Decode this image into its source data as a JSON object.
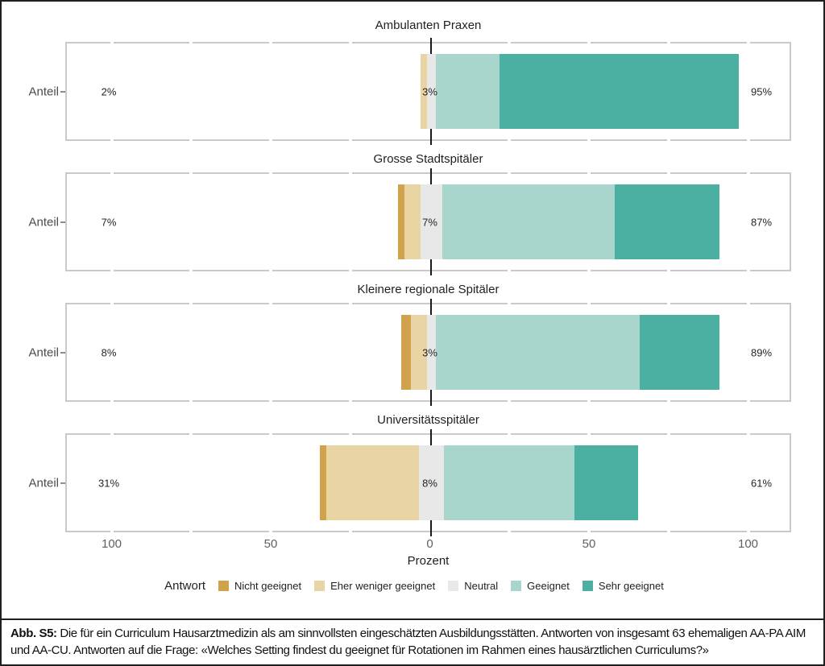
{
  "chart_data": {
    "type": "bar",
    "variant": "diverging_stacked_likert_horizontal",
    "title": "",
    "xlabel": "Prozent",
    "ylabel": "Anteil",
    "xlim": [
      -114,
      114
    ],
    "x_ticks": [
      -100,
      -50,
      0,
      50,
      100
    ],
    "x_tick_labels": [
      "100",
      "50",
      "0",
      "50",
      "100"
    ],
    "minor_break_step": 25,
    "grid": "minor white breaks on panel border, black zero line",
    "legend_position": "bottom",
    "legend_title": "Antwort",
    "categories": [
      "Nicht geeignet",
      "Eher weniger geeignet",
      "Neutral",
      "Geeignet",
      "Sehr geeignet"
    ],
    "colors": [
      "#cfa24b",
      "#e9d5a4",
      "#e8e8e8",
      "#a8d6cd",
      "#4bb0a2"
    ],
    "panels": [
      {
        "title": "Ambulanten Praxen",
        "values": [
          0,
          2,
          3,
          20,
          75
        ],
        "label_left": "2%",
        "label_center": "3%",
        "label_right": "95%"
      },
      {
        "title": "Grosse Stadtspitäler",
        "values": [
          2,
          5,
          7,
          54,
          33
        ],
        "label_left": "7%",
        "label_center": "7%",
        "label_right": "87%"
      },
      {
        "title": "Kleinere regionale Spitäler",
        "values": [
          3,
          5,
          3,
          64,
          25
        ],
        "label_left": "8%",
        "label_center": "3%",
        "label_right": "89%"
      },
      {
        "title": "Universitätsspitäler",
        "values": [
          2,
          29,
          8,
          41,
          20
        ],
        "label_left": "31%",
        "label_center": "8%",
        "label_right": "61%"
      }
    ]
  },
  "caption": {
    "prefix": "Abb. S5:",
    "text": "Die für ein Curriculum Hausarztmedizin als am sinnvollsten eingeschätzten Ausbildungsstätten. Antworten von insgesamt 63 ehemaligen AA-PA AIM und AA-CU. Antworten auf die Frage: «Welches Setting findest du geeignet für Rotationen im Rahmen eines hausärztlichen Curriculums?»"
  }
}
